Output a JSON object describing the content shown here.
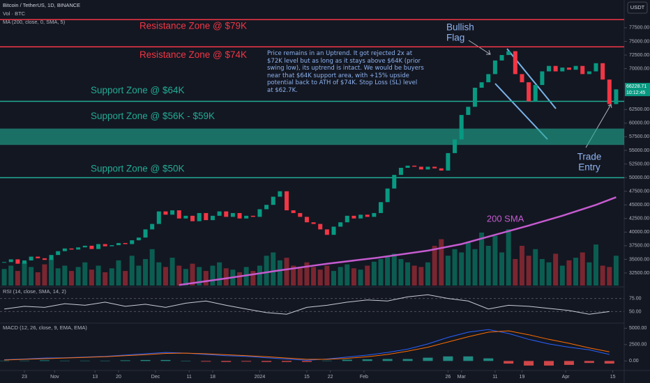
{
  "chart_data": {
    "type": "candlestick",
    "title": "Bitcoin / TetherUS, 1D, BINANCE",
    "volume_label": "Vol · BTC",
    "ma_label": "MA (200, close, 0, SMA, 5)",
    "currency": "USDT",
    "up_color": "#089981",
    "down_color": "#f23645",
    "x": [
      -6,
      -4,
      -2,
      0,
      2,
      4,
      6,
      8,
      10,
      12,
      14,
      16,
      18,
      20,
      22,
      24,
      26,
      28,
      30,
      32,
      34,
      36,
      38,
      40,
      42,
      44,
      46,
      48,
      50,
      52,
      54,
      56,
      58,
      60,
      62,
      64,
      66,
      68,
      70,
      72,
      74,
      76,
      78,
      80,
      82,
      84,
      86,
      88,
      90,
      92,
      94,
      96,
      98,
      100,
      102,
      104,
      106,
      108,
      110,
      112,
      114,
      116,
      118,
      120,
      122,
      124,
      126,
      128,
      130,
      132,
      134,
      136,
      138,
      140,
      142,
      144,
      146,
      148,
      150,
      152,
      154,
      156,
      158,
      160,
      162,
      164,
      166,
      168,
      170,
      172,
      174,
      176
    ],
    "close": [
      34500,
      35000,
      34200,
      34800,
      35500,
      35200,
      34900,
      35800,
      36500,
      37000,
      36800,
      37200,
      37500,
      36900,
      37800,
      37400,
      37600,
      38000,
      37800,
      38500,
      39000,
      40500,
      41500,
      43800,
      43200,
      44000,
      42500,
      43000,
      42000,
      43500,
      42200,
      43000,
      43800,
      42800,
      43500,
      42500,
      43000,
      42800,
      44200,
      45000,
      46500,
      47500,
      44000,
      43500,
      42800,
      41800,
      41500,
      40500,
      39500,
      41000,
      41800,
      43000,
      42500,
      43200,
      42800,
      43500,
      45500,
      48000,
      50500,
      51800,
      52200,
      52000,
      51500,
      52000,
      51700,
      51300,
      54500,
      57000,
      61500,
      63000,
      66500,
      67500,
      69000,
      71500,
      72500,
      73200,
      69000,
      67500,
      64000,
      67000,
      69500,
      70500,
      69500,
      70200,
      69800,
      70500,
      69000,
      69500,
      71000,
      68000,
      63500,
      66200
    ],
    "volume": [
      25,
      30,
      22,
      35,
      28,
      20,
      32,
      40,
      26,
      30,
      22,
      28,
      35,
      24,
      30,
      20,
      26,
      38,
      22,
      45,
      30,
      40,
      55,
      35,
      28,
      42,
      30,
      25,
      33,
      28,
      22,
      30,
      35,
      26,
      24,
      20,
      28,
      22,
      30,
      45,
      50,
      38,
      42,
      30,
      26,
      35,
      28,
      24,
      30,
      22,
      28,
      32,
      26,
      24,
      30,
      36,
      40,
      45,
      48,
      40,
      35,
      30,
      28,
      35,
      60,
      70,
      45,
      55,
      50,
      65,
      55,
      80,
      60,
      75,
      50,
      85,
      40,
      60,
      45,
      55,
      40,
      35,
      48,
      30,
      38,
      42,
      50,
      35,
      62,
      30,
      28,
      45
    ],
    "volume_lim": [
      0,
      100
    ],
    "xlim": [
      -7.26,
      178.4
    ],
    "xticks": [
      {
        "value": 0,
        "label": "23"
      },
      {
        "value": 9,
        "label": "Nov"
      },
      {
        "value": 21,
        "label": "13"
      },
      {
        "value": 28,
        "label": "20"
      },
      {
        "value": 39,
        "label": "Dec"
      },
      {
        "value": 49,
        "label": "11"
      },
      {
        "value": 56,
        "label": "18"
      },
      {
        "value": 70,
        "label": "2024"
      },
      {
        "value": 84,
        "label": "15"
      },
      {
        "value": 91,
        "label": "22"
      },
      {
        "value": 101,
        "label": "Feb"
      },
      {
        "value": 126,
        "label": "26"
      },
      {
        "value": 130,
        "label": "Mar"
      },
      {
        "value": 140,
        "label": "11"
      },
      {
        "value": 148,
        "label": "19"
      },
      {
        "value": 161,
        "label": "Apr"
      },
      {
        "value": 175,
        "label": "15"
      }
    ],
    "ylim": [
      30200,
      82600
    ],
    "yticks": [
      {
        "value": 32500,
        "label": "32500.00"
      },
      {
        "value": 35000,
        "label": "35000.00"
      },
      {
        "value": 37500,
        "label": "37500.00"
      },
      {
        "value": 40000,
        "label": "40000.00"
      },
      {
        "value": 42500,
        "label": "42500.00"
      },
      {
        "value": 45000,
        "label": "45000.00"
      },
      {
        "value": 47500,
        "label": "47500.00"
      },
      {
        "value": 50000,
        "label": "50000.00"
      },
      {
        "value": 52500,
        "label": "52500.00"
      },
      {
        "value": 55000,
        "label": "55000.00"
      },
      {
        "value": 57500,
        "label": "57500.00"
      },
      {
        "value": 60000,
        "label": "60000.00"
      },
      {
        "value": 62500,
        "label": "62500.00"
      },
      {
        "value": 70000,
        "label": "70000.00"
      },
      {
        "value": 72500,
        "label": "72500.00"
      },
      {
        "value": 75000,
        "label": "75000.00"
      },
      {
        "value": 77500,
        "label": "77500.00"
      }
    ],
    "last_price": {
      "value": 66228.71,
      "countdown": "10:12:45",
      "color": "#089981"
    },
    "sma": {
      "name": "200 SMA",
      "color": "#c65bd0",
      "x": [
        46,
        60,
        75,
        90,
        105,
        120,
        130,
        140,
        150,
        160,
        170,
        176
      ],
      "values": [
        30300,
        31500,
        32900,
        34200,
        35300,
        36600,
        37800,
        39500,
        41200,
        43000,
        45000,
        46400
      ]
    },
    "zones": [
      {
        "label": "Resistance Zone @ $79K",
        "low": 79000,
        "high": 79000,
        "color": "#f23645"
      },
      {
        "label": "Resistance Zone @ $74K",
        "low": 74000,
        "high": 74000,
        "color": "#f23645"
      },
      {
        "label": "Support Zone @ $64K",
        "low": 64000,
        "high": 64000,
        "color": "#22ab94"
      },
      {
        "label": "Support Zone @ $56K - $59K",
        "low": 56000,
        "high": 59000,
        "color": "#22ab94"
      },
      {
        "label": "Support Zone @ $50K",
        "low": 50000,
        "high": 50000,
        "color": "#22ab94"
      }
    ],
    "annotations": {
      "note": "Price remains in an Uptrend. It got rejected 2x at $72K level but as long as it stays above $64K (prior swing low), its uptrend is intact. We would be buyers near that $64K support area, with +15% upside potential back to ATH of $74K. Stop Loss (SL) level at $62.7K.",
      "flag": [
        "Bullish",
        "Flag"
      ],
      "entry": [
        "Trade",
        "Entry"
      ]
    },
    "rsi": {
      "title": "RSI (14, close, SMA, 14, 2)",
      "color": "#c9ccd4",
      "x": [
        -6,
        0,
        6,
        12,
        18,
        24,
        30,
        36,
        42,
        48,
        54,
        60,
        66,
        72,
        78,
        84,
        90,
        96,
        102,
        108,
        114,
        120,
        126,
        132,
        138,
        144,
        150,
        156,
        162,
        168,
        174
      ],
      "values": [
        55,
        60,
        58,
        65,
        62,
        68,
        60,
        64,
        58,
        66,
        70,
        62,
        55,
        48,
        45,
        58,
        62,
        68,
        72,
        70,
        78,
        82,
        75,
        70,
        55,
        62,
        60,
        56,
        52,
        45,
        50
      ],
      "ylim": [
        28,
        97
      ],
      "yticks": [
        {
          "value": 75,
          "label": "75.00"
        },
        {
          "value": 50,
          "label": "50.00"
        }
      ]
    },
    "macd": {
      "title": "MACD (12, 26, close, 9, EMA, EMA)",
      "x": [
        -6,
        0,
        6,
        12,
        18,
        24,
        30,
        36,
        42,
        48,
        54,
        60,
        66,
        72,
        78,
        84,
        90,
        96,
        102,
        108,
        114,
        120,
        126,
        132,
        138,
        144,
        150,
        156,
        162,
        168,
        174
      ],
      "line": {
        "color": "#2962ff",
        "values": [
          200,
          300,
          450,
          500,
          600,
          700,
          900,
          1100,
          1300,
          1200,
          1000,
          800,
          700,
          500,
          300,
          100,
          300,
          600,
          900,
          1300,
          1800,
          2600,
          3600,
          4400,
          4800,
          4200,
          3300,
          2600,
          2100,
          1700,
          1000
        ]
      },
      "signal": {
        "color": "#ff6d00",
        "values": [
          150,
          250,
          350,
          450,
          550,
          650,
          800,
          950,
          1150,
          1200,
          1100,
          950,
          800,
          650,
          450,
          250,
          250,
          400,
          650,
          1000,
          1500,
          2100,
          2900,
          3700,
          4400,
          4600,
          4000,
          3300,
          2700,
          2000,
          1400
        ]
      },
      "histogram": {
        "up_color": "#26a69a",
        "down_color": "#ff5252",
        "values": [
          50,
          50,
          100,
          50,
          50,
          50,
          100,
          150,
          150,
          0,
          -100,
          -150,
          -100,
          -150,
          -150,
          -150,
          50,
          200,
          250,
          300,
          300,
          500,
          700,
          700,
          400,
          -400,
          -700,
          -700,
          -600,
          -300,
          -400
        ]
      },
      "ylim": [
        -1450,
        5780
      ],
      "yticks": [
        {
          "value": 5000,
          "label": "5000.00"
        },
        {
          "value": 2500,
          "label": "2500.00"
        },
        {
          "value": 0,
          "label": "0.00"
        }
      ]
    }
  }
}
